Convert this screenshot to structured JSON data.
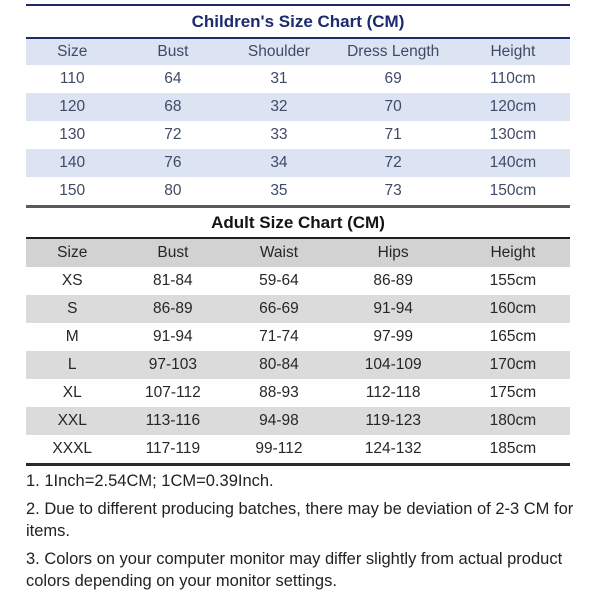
{
  "children_chart": {
    "title": "Children's Size Chart (CM)",
    "columns": [
      "Size",
      "Bust",
      "Shoulder",
      "Dress Length",
      "Height"
    ],
    "rows": [
      [
        "110",
        "64",
        "31",
        "69",
        "110cm"
      ],
      [
        "120",
        "68",
        "32",
        "70",
        "120cm"
      ],
      [
        "130",
        "72",
        "33",
        "71",
        "130cm"
      ],
      [
        "140",
        "76",
        "34",
        "72",
        "140cm"
      ],
      [
        "150",
        "80",
        "35",
        "73",
        "150cm"
      ]
    ]
  },
  "adult_chart": {
    "title": "Adult Size Chart (CM)",
    "columns": [
      "Size",
      "Bust",
      "Waist",
      "Hips",
      "Height"
    ],
    "rows": [
      [
        "XS",
        "81-84",
        "59-64",
        "86-89",
        "155cm"
      ],
      [
        "S",
        "86-89",
        "66-69",
        "91-94",
        "160cm"
      ],
      [
        "M",
        "91-94",
        "71-74",
        "97-99",
        "165cm"
      ],
      [
        "L",
        "97-103",
        "80-84",
        "104-109",
        "170cm"
      ],
      [
        "XL",
        "107-112",
        "88-93",
        "112-118",
        "175cm"
      ],
      [
        "XXL",
        "113-116",
        "94-98",
        "119-123",
        "180cm"
      ],
      [
        "XXXL",
        "117-119",
        "99-112",
        "124-132",
        "185cm"
      ]
    ]
  },
  "notes": [
    "1. 1Inch=2.54CM; 1CM=0.39Inch.",
    "2. Due to different producing batches, there may be deviation of 2-3 CM for items.",
    "3. Colors on your computer monitor may differ slightly from actual product colors depending on your monitor settings."
  ],
  "colors": {
    "children_accent": "#1c2a6e",
    "children_row_alt": "#dce3f2",
    "children_text": "#3e4a66",
    "adult_header_bg": "#d2d2d2",
    "adult_row_alt": "#dbdbdb",
    "adult_text": "#262626",
    "rule_navy": "#1e2a68",
    "rule_dark": "#2a2a2a"
  }
}
